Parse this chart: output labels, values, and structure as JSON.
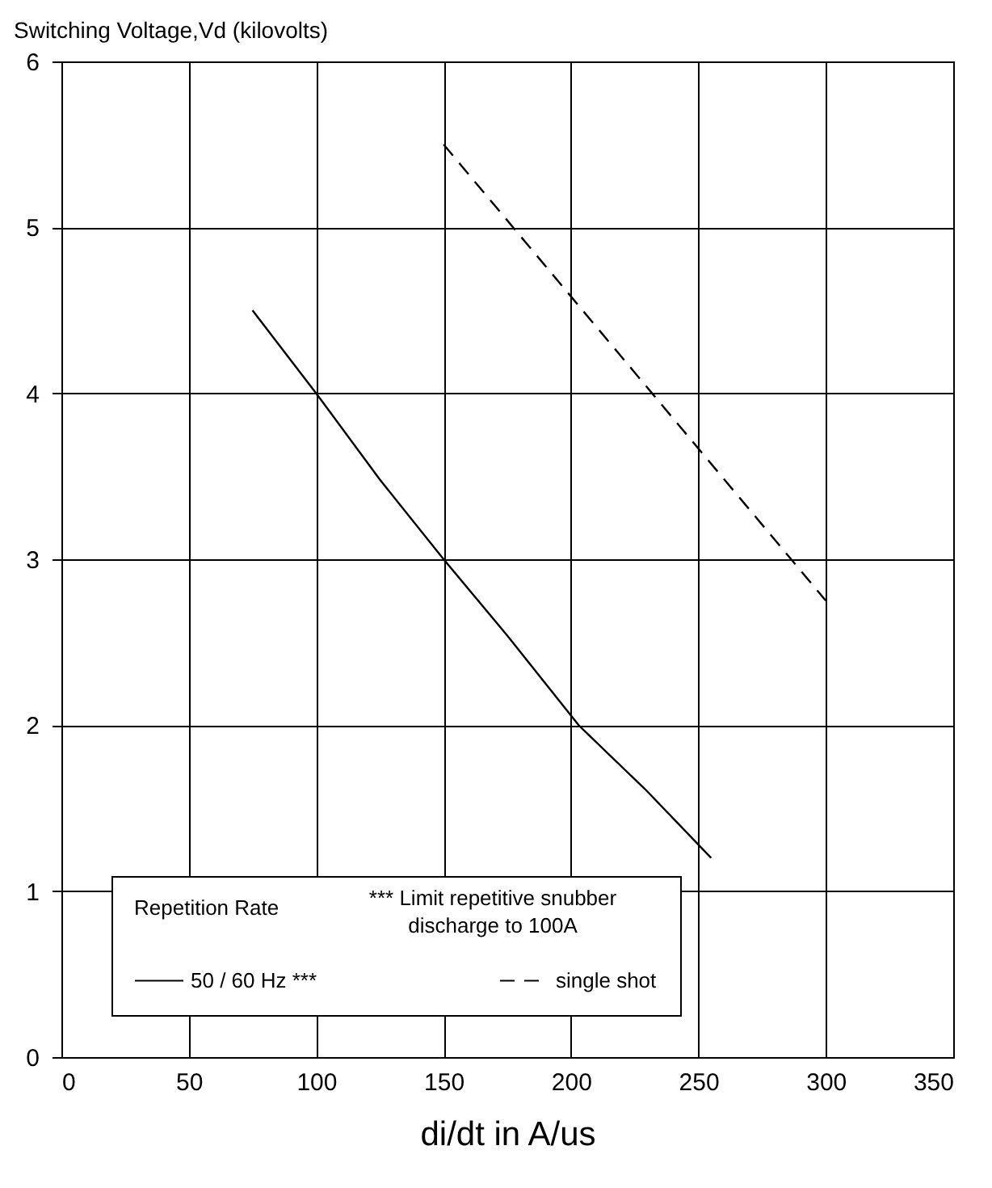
{
  "chart_data": {
    "type": "line",
    "ylabel": "Switching Voltage,Vd (kilovolts)",
    "xlabel": "di/dt in A/us",
    "legend_title": "Repetition Rate",
    "annotations": [
      "*** Limit repetitive snubber\ndischarge to 100A"
    ],
    "series": [
      {
        "name": "50 / 60 Hz ***",
        "color": "#000000",
        "line_style": "solid",
        "x": [
          75,
          100,
          125,
          150,
          175,
          203,
          230,
          255
        ],
        "values": [
          4.5,
          4,
          3.48,
          3,
          2.54,
          2,
          1.6,
          1.2
        ]
      },
      {
        "name": "single shot",
        "color": "#000000",
        "line_style": "dashed",
        "x": [
          150,
          300
        ],
        "values": [
          5.5,
          2.75
        ]
      }
    ],
    "xlim": [
      0,
      350
    ],
    "xticks": [
      0,
      50,
      100,
      150,
      200,
      250,
      300,
      350
    ],
    "ylim": [
      0,
      6
    ],
    "yticks": [
      0,
      1,
      2,
      3,
      4,
      5,
      6
    ],
    "grid": true,
    "legend": "bottom left",
    "marker": "none"
  }
}
